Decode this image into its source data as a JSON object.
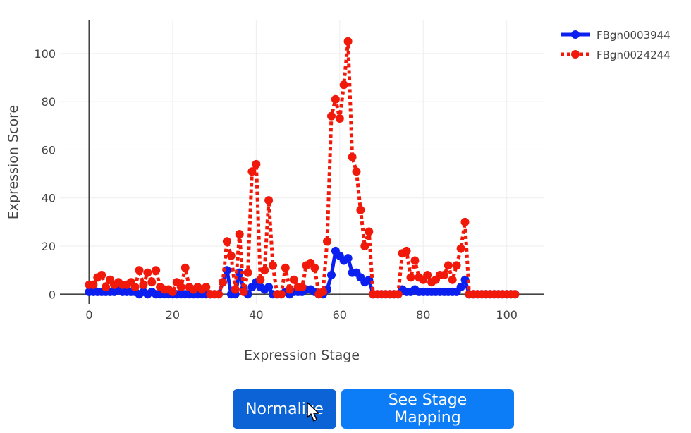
{
  "chart_data": {
    "type": "line",
    "xlabel": "Expression Stage",
    "ylabel": "Expression Score",
    "xlim": [
      -7,
      109
    ],
    "ylim": [
      -4,
      114
    ],
    "xticks": [
      0,
      20,
      40,
      60,
      80,
      100
    ],
    "yticks": [
      0,
      20,
      40,
      60,
      80,
      100
    ],
    "grid": true,
    "legend_position": "top-right",
    "series": [
      {
        "name": "FBgn0003944",
        "color": "#0a1ff0",
        "line_style": "solid",
        "x": [
          0,
          1,
          2,
          3,
          4,
          5,
          6,
          7,
          8,
          9,
          10,
          11,
          12,
          13,
          14,
          15,
          16,
          17,
          18,
          19,
          20,
          21,
          22,
          23,
          24,
          25,
          26,
          27,
          28,
          29,
          30,
          31,
          32,
          33,
          34,
          35,
          36,
          37,
          38,
          39,
          40,
          41,
          42,
          43,
          44,
          45,
          46,
          47,
          48,
          49,
          50,
          51,
          52,
          53,
          54,
          55,
          56,
          57,
          58,
          59,
          60,
          61,
          62,
          63,
          64,
          65,
          66,
          67,
          68,
          69,
          70,
          71,
          72,
          73,
          74,
          75,
          76,
          77,
          78,
          79,
          80,
          81,
          82,
          83,
          84,
          85,
          86,
          87,
          88,
          89,
          90,
          91,
          92,
          93,
          94,
          95,
          96,
          97,
          98,
          99,
          100,
          101,
          102
        ],
        "y": [
          1,
          1,
          1,
          1,
          1,
          1,
          1,
          2,
          1,
          1,
          1,
          1,
          0,
          1,
          0,
          1,
          0,
          0,
          0,
          0,
          0,
          0,
          0,
          0,
          0,
          0,
          0,
          0,
          0,
          0,
          0,
          0,
          5,
          10,
          0,
          0,
          9,
          2,
          0,
          3,
          5,
          3,
          2,
          3,
          0,
          0,
          0,
          1,
          0,
          1,
          1,
          1,
          2,
          2,
          1,
          0,
          0,
          2,
          8,
          18,
          16,
          14,
          15,
          9,
          9,
          7,
          5,
          6,
          0,
          0,
          0,
          0,
          0,
          0,
          0,
          2,
          1,
          1,
          2,
          1,
          1,
          1,
          1,
          1,
          1,
          1,
          1,
          1,
          1,
          3,
          6,
          0,
          0,
          0,
          0,
          0,
          0,
          0,
          0,
          0,
          0,
          0,
          0
        ]
      },
      {
        "name": "FBgn0024244",
        "color": "#f0190a",
        "line_style": "dot",
        "x": [
          0,
          1,
          2,
          3,
          4,
          5,
          6,
          7,
          8,
          9,
          10,
          11,
          12,
          13,
          14,
          15,
          16,
          17,
          18,
          19,
          20,
          21,
          22,
          23,
          24,
          25,
          26,
          27,
          28,
          29,
          30,
          31,
          32,
          33,
          34,
          35,
          36,
          37,
          38,
          39,
          40,
          41,
          42,
          43,
          44,
          45,
          46,
          47,
          48,
          49,
          50,
          51,
          52,
          53,
          54,
          55,
          56,
          57,
          58,
          59,
          60,
          61,
          62,
          63,
          64,
          65,
          66,
          67,
          68,
          69,
          70,
          71,
          72,
          73,
          74,
          75,
          76,
          77,
          78,
          79,
          80,
          81,
          82,
          83,
          84,
          85,
          86,
          87,
          88,
          89,
          90,
          91,
          92,
          93,
          94,
          95,
          96,
          97,
          98,
          99,
          100,
          101,
          102
        ],
        "y": [
          4,
          4,
          7,
          8,
          3,
          6,
          4,
          5,
          4,
          4,
          5,
          3,
          10,
          4,
          9,
          5,
          10,
          3,
          2,
          2,
          1,
          5,
          3,
          11,
          3,
          2,
          3,
          2,
          3,
          0,
          0,
          0,
          5,
          22,
          16,
          2,
          25,
          1,
          9,
          51,
          54,
          6,
          10,
          39,
          12,
          0,
          0,
          11,
          2,
          6,
          3,
          3,
          12,
          13,
          11,
          0,
          1,
          22,
          74,
          81,
          73,
          87,
          105,
          57,
          51,
          35,
          20,
          26,
          0,
          0,
          0,
          0,
          0,
          0,
          0,
          17,
          18,
          7,
          14,
          7,
          6,
          8,
          5,
          6,
          8,
          8,
          12,
          6,
          12,
          19,
          30,
          0,
          0,
          0,
          0,
          0,
          0,
          0,
          0,
          0,
          0,
          0,
          0
        ]
      }
    ]
  },
  "buttons": {
    "normalize": "Normalize",
    "stage_mapping": "See Stage Mapping"
  }
}
